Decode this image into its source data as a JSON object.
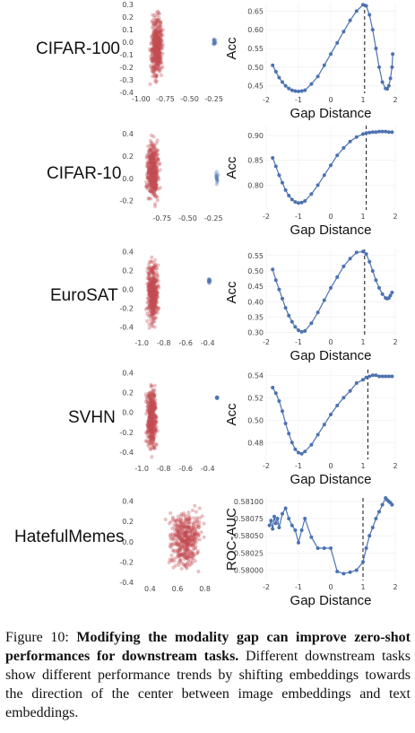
{
  "rows": [
    {
      "label": "CIFAR-100"
    },
    {
      "label": "CIFAR-10"
    },
    {
      "label": "EuroSAT"
    },
    {
      "label": "SVHN"
    },
    {
      "label": "HatefulMemes"
    }
  ],
  "caption": {
    "prefix": "Figure 10: ",
    "bold": "Modifying the modality gap can improve zero-shot performances for downstream tasks.",
    "rest": " Different downstream tasks show different performance trends by shifting embeddings towards the direction of the center between image embeddings and text embeddings."
  },
  "colors": {
    "scatter_red": "#c44e52",
    "scatter_blue": "#4c72b0",
    "line_blue": "#4c72b0"
  },
  "chart_data": [
    {
      "type": "scatter",
      "dataset": "CIFAR-100",
      "xlim": [
        -1.05,
        -0.2
      ],
      "ylim": [
        -0.4,
        0.3
      ],
      "xticks": [
        "-1.00",
        "-0.75",
        "-0.50",
        "-0.25"
      ],
      "yticks": [
        "0.3",
        "0.2",
        "0.1",
        "0.0",
        "-0.1",
        "-0.2",
        "-0.3",
        "-0.4"
      ],
      "clusters": [
        {
          "color": "red",
          "x_range": [
            -0.92,
            -0.76
          ],
          "y_range": [
            -0.38,
            0.29
          ]
        },
        {
          "color": "blue",
          "x_range": [
            -0.26,
            -0.22
          ],
          "y_range": [
            -0.05,
            0.05
          ]
        }
      ]
    },
    {
      "type": "line",
      "dataset": "CIFAR-100",
      "xlabel": "Gap Distance",
      "ylabel": "Acc",
      "xlim": [
        -2,
        2
      ],
      "ylim": [
        0.43,
        0.67
      ],
      "xticks": [
        "-2",
        "-1",
        "0",
        "1",
        "2"
      ],
      "yticks": [
        "0.65",
        "0.60",
        "0.55",
        "0.50",
        "0.45"
      ],
      "vline": 1.05,
      "x": [
        -1.8,
        -1.7,
        -1.6,
        -1.5,
        -1.4,
        -1.3,
        -1.2,
        -1.1,
        -1.0,
        -0.9,
        -0.8,
        -0.6,
        -0.4,
        -0.2,
        0.0,
        0.2,
        0.4,
        0.6,
        0.8,
        1.0,
        1.1,
        1.2,
        1.3,
        1.4,
        1.5,
        1.6,
        1.7,
        1.75,
        1.8,
        1.85,
        1.9,
        1.92
      ],
      "y": [
        0.505,
        0.488,
        0.472,
        0.46,
        0.45,
        0.443,
        0.438,
        0.436,
        0.435,
        0.436,
        0.438,
        0.455,
        0.475,
        0.505,
        0.535,
        0.565,
        0.595,
        0.625,
        0.65,
        0.667,
        0.664,
        0.64,
        0.6,
        0.55,
        0.5,
        0.46,
        0.443,
        0.442,
        0.45,
        0.47,
        0.5,
        0.535
      ]
    },
    {
      "type": "scatter",
      "dataset": "CIFAR-10",
      "xlim": [
        -1.0,
        -0.2
      ],
      "ylim": [
        -0.3,
        0.45
      ],
      "xticks": [
        "-0.75",
        "-0.50",
        "-0.25"
      ],
      "yticks": [
        "0.4",
        "0.2",
        "0.0",
        "-0.2"
      ],
      "clusters": [
        {
          "color": "red",
          "x_range": [
            -0.92,
            -0.76
          ],
          "y_range": [
            -0.28,
            0.42
          ]
        },
        {
          "color": "blue",
          "x_range": [
            -0.24,
            -0.2
          ],
          "y_range": [
            -0.12,
            0.12
          ]
        }
      ]
    },
    {
      "type": "line",
      "dataset": "CIFAR-10",
      "xlabel": "Gap Distance",
      "ylabel": "Acc",
      "xlim": [
        -2,
        2
      ],
      "ylim": [
        0.75,
        0.92
      ],
      "xticks": [
        "-2",
        "-1",
        "0",
        "1",
        "2"
      ],
      "yticks": [
        "0.90",
        "0.85",
        "0.80"
      ],
      "vline": 1.1,
      "x": [
        -1.8,
        -1.7,
        -1.6,
        -1.5,
        -1.4,
        -1.3,
        -1.2,
        -1.1,
        -1.0,
        -0.9,
        -0.8,
        -0.6,
        -0.4,
        -0.2,
        0.0,
        0.2,
        0.4,
        0.6,
        0.8,
        1.0,
        1.1,
        1.2,
        1.3,
        1.4,
        1.5,
        1.6,
        1.7,
        1.8,
        1.9
      ],
      "y": [
        0.855,
        0.838,
        0.82,
        0.805,
        0.79,
        0.779,
        0.771,
        0.766,
        0.764,
        0.765,
        0.768,
        0.782,
        0.8,
        0.82,
        0.84,
        0.86,
        0.875,
        0.888,
        0.897,
        0.903,
        0.905,
        0.906,
        0.907,
        0.907,
        0.908,
        0.908,
        0.908,
        0.907,
        0.907
      ]
    },
    {
      "type": "scatter",
      "dataset": "EuroSAT",
      "xlim": [
        -1.05,
        -0.3
      ],
      "ylim": [
        -0.5,
        0.45
      ],
      "xticks": [
        "-1.0",
        "-0.8",
        "-0.6",
        "-0.4"
      ],
      "yticks": [
        "0.4",
        "0.2",
        "0.0",
        "-0.2",
        "-0.4"
      ],
      "clusters": [
        {
          "color": "red",
          "x_range": [
            -0.97,
            -0.83
          ],
          "y_range": [
            -0.48,
            0.4
          ]
        },
        {
          "color": "blue",
          "x_range": [
            -0.4,
            -0.37
          ],
          "y_range": [
            0.05,
            0.12
          ]
        }
      ]
    },
    {
      "type": "line",
      "dataset": "EuroSAT",
      "xlabel": "Gap Distance",
      "ylabel": "Acc",
      "xlim": [
        -2,
        2
      ],
      "ylim": [
        0.29,
        0.57
      ],
      "xticks": [
        "-2",
        "-1",
        "0",
        "1",
        "2"
      ],
      "yticks": [
        "0.55",
        "0.50",
        "0.45",
        "0.40",
        "0.35",
        "0.30"
      ],
      "vline": 1.05,
      "x": [
        -1.8,
        -1.7,
        -1.6,
        -1.5,
        -1.4,
        -1.3,
        -1.2,
        -1.1,
        -1.0,
        -0.9,
        -0.8,
        -0.6,
        -0.4,
        -0.2,
        0.0,
        0.2,
        0.4,
        0.6,
        0.8,
        1.0,
        1.1,
        1.2,
        1.3,
        1.4,
        1.5,
        1.6,
        1.7,
        1.75,
        1.8,
        1.85,
        1.9
      ],
      "y": [
        0.505,
        0.47,
        0.44,
        0.41,
        0.38,
        0.355,
        0.335,
        0.318,
        0.307,
        0.302,
        0.305,
        0.33,
        0.365,
        0.405,
        0.445,
        0.48,
        0.515,
        0.54,
        0.56,
        0.563,
        0.555,
        0.53,
        0.5,
        0.47,
        0.445,
        0.425,
        0.412,
        0.41,
        0.412,
        0.42,
        0.43
      ]
    },
    {
      "type": "scatter",
      "dataset": "SVHN",
      "xlim": [
        -1.05,
        -0.3
      ],
      "ylim": [
        -0.5,
        0.45
      ],
      "xticks": [
        "-1.0",
        "-0.8",
        "-0.6",
        "-0.4"
      ],
      "yticks": [
        "0.4",
        "0.2",
        "0.0",
        "-0.2",
        "-0.4"
      ],
      "clusters": [
        {
          "color": "red",
          "x_range": [
            -0.97,
            -0.85
          ],
          "y_range": [
            -0.48,
            0.38
          ]
        },
        {
          "color": "blue",
          "x_range": [
            -0.32,
            -0.31
          ],
          "y_range": [
            0.14,
            0.16
          ]
        }
      ]
    },
    {
      "type": "line",
      "dataset": "SVHN",
      "xlabel": "Gap Distance",
      "ylabel": "Acc",
      "xlim": [
        -2,
        2
      ],
      "ylim": [
        0.465,
        0.545
      ],
      "xticks": [
        "-2",
        "-1",
        "0",
        "1",
        "2"
      ],
      "yticks": [
        "0.54",
        "0.52",
        "0.50",
        "0.48"
      ],
      "vline": 1.15,
      "x": [
        -1.8,
        -1.7,
        -1.6,
        -1.5,
        -1.4,
        -1.3,
        -1.2,
        -1.1,
        -1.0,
        -0.9,
        -0.8,
        -0.6,
        -0.4,
        -0.2,
        0.0,
        0.2,
        0.4,
        0.6,
        0.8,
        1.0,
        1.1,
        1.2,
        1.3,
        1.4,
        1.5,
        1.6,
        1.7,
        1.8,
        1.9
      ],
      "y": [
        0.529,
        0.524,
        0.517,
        0.508,
        0.497,
        0.488,
        0.48,
        0.474,
        0.471,
        0.47,
        0.472,
        0.478,
        0.487,
        0.496,
        0.505,
        0.513,
        0.52,
        0.526,
        0.533,
        0.536,
        0.538,
        0.539,
        0.54,
        0.54,
        0.539,
        0.539,
        0.539,
        0.539,
        0.539
      ]
    },
    {
      "type": "scatter",
      "dataset": "HatefulMemes",
      "xlim": [
        0.3,
        0.9
      ],
      "ylim": [
        -0.4,
        0.45
      ],
      "xticks": [
        "0.4",
        "0.6",
        "0.8"
      ],
      "yticks": [
        "0.4",
        "0.2",
        "0.0",
        "-0.2",
        "-0.4"
      ],
      "clusters": [
        {
          "color": "red",
          "x_range": [
            0.5,
            0.82
          ],
          "y_range": [
            -0.35,
            0.42
          ]
        }
      ]
    },
    {
      "type": "line",
      "dataset": "HatefulMemes",
      "xlabel": "Gap Distance",
      "ylabel": "ROC-AUC",
      "xlim": [
        -2,
        2
      ],
      "ylim": [
        0.57985,
        0.58105
      ],
      "xticks": [
        "-2",
        "-1",
        "0",
        "1",
        "2"
      ],
      "yticks": [
        "0.58100",
        "0.58075",
        "0.58050",
        "0.58025",
        "0.58000"
      ],
      "vline": 1.0,
      "x": [
        -1.9,
        -1.85,
        -1.8,
        -1.75,
        -1.7,
        -1.65,
        -1.6,
        -1.5,
        -1.4,
        -1.3,
        -1.2,
        -1.1,
        -1.0,
        -0.9,
        -0.8,
        -0.6,
        -0.4,
        -0.2,
        0.0,
        0.2,
        0.4,
        0.6,
        0.8,
        1.0,
        1.1,
        1.2,
        1.3,
        1.4,
        1.5,
        1.6,
        1.7,
        1.75,
        1.8,
        1.85,
        1.9
      ],
      "y": [
        0.58065,
        0.58072,
        0.5806,
        0.58078,
        0.58068,
        0.58075,
        0.58062,
        0.58082,
        0.5809,
        0.58075,
        0.58065,
        0.58058,
        0.5804,
        0.58058,
        0.58075,
        0.58048,
        0.58032,
        0.58032,
        0.58032,
        0.57998,
        0.57995,
        0.57997,
        0.58,
        0.58012,
        0.58032,
        0.5805,
        0.58062,
        0.58075,
        0.58085,
        0.58095,
        0.58105,
        0.58102,
        0.581,
        0.58098,
        0.58095
      ]
    }
  ]
}
